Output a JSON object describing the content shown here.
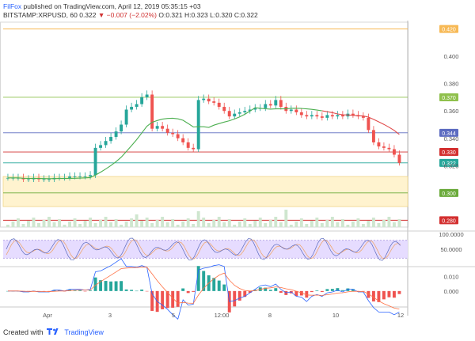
{
  "header": {
    "author": "FilFox",
    "published_text": "published on TradingView.com, April 12, 2019 05:35:15 +03",
    "symbol": "BITSTAMP:XRPUSD, 60",
    "last": "0.322",
    "change": "−0.007 (−2.02%)",
    "o": "O:0.321",
    "h": "H:0.323",
    "l": "L:0.320",
    "c": "C:0.322"
  },
  "footer": {
    "created_with": "Created with",
    "brand": "TradingView"
  },
  "colors": {
    "up": "#26a69a",
    "down": "#ef5350",
    "ma_green": "#4caf50",
    "ma_red": "#e04848",
    "zone_fill": "#fff3cf",
    "osc_fill": "#e6dcff"
  },
  "chart_data": {
    "type": "candlestick",
    "price_axis": {
      "ticks": [
        "0.400",
        "0.380",
        "0.360",
        "0.340",
        "0.320"
      ],
      "ylim": [
        0.275,
        0.425
      ]
    },
    "x_axis_labels": [
      "Apr",
      "3",
      "5",
      "12:00",
      "8",
      "10",
      "12"
    ],
    "candles_close": [
      0.311,
      0.311,
      0.311,
      0.31,
      0.31,
      0.311,
      0.31,
      0.31,
      0.31,
      0.311,
      0.311,
      0.311,
      0.312,
      0.312,
      0.312,
      0.312,
      0.313,
      0.333,
      0.335,
      0.338,
      0.341,
      0.345,
      0.35,
      0.361,
      0.363,
      0.365,
      0.37,
      0.372,
      0.347,
      0.349,
      0.347,
      0.344,
      0.343,
      0.34,
      0.337,
      0.333,
      0.332,
      0.368,
      0.369,
      0.367,
      0.366,
      0.363,
      0.36,
      0.356,
      0.358,
      0.359,
      0.36,
      0.361,
      0.362,
      0.362,
      0.365,
      0.364,
      0.368,
      0.363,
      0.36,
      0.361,
      0.359,
      0.357,
      0.356,
      0.357,
      0.356,
      0.355,
      0.357,
      0.356,
      0.357,
      0.356,
      0.358,
      0.357,
      0.356,
      0.355,
      0.346,
      0.337,
      0.334,
      0.333,
      0.332,
      0.328,
      0.322
    ],
    "horizontal_levels": [
      {
        "label": "0.420",
        "value": 0.42,
        "color": "#f7b955"
      },
      {
        "label": "0.370",
        "value": 0.37,
        "color": "#8fc04c"
      },
      {
        "label": "0.344",
        "value": 0.344,
        "color": "#5c6bc0"
      },
      {
        "label": "0.330",
        "value": 0.33,
        "color": "#d32f2f"
      },
      {
        "label": "0.322",
        "value": 0.322,
        "color": "#26a69a"
      },
      {
        "label": "0.300",
        "value": 0.3,
        "color": "#6aaa3a"
      },
      {
        "label": "0.280",
        "value": 0.28,
        "color": "#d32f2f"
      }
    ],
    "zone": {
      "from": 0.29,
      "to": 0.312
    },
    "oscillator": {
      "ticks": [
        "100.0000",
        "50.0000"
      ],
      "range": [
        0,
        100
      ]
    },
    "macd": {
      "ticks": [
        "0.010",
        "0.000"
      ],
      "range": [
        -0.012,
        0.014
      ]
    }
  }
}
